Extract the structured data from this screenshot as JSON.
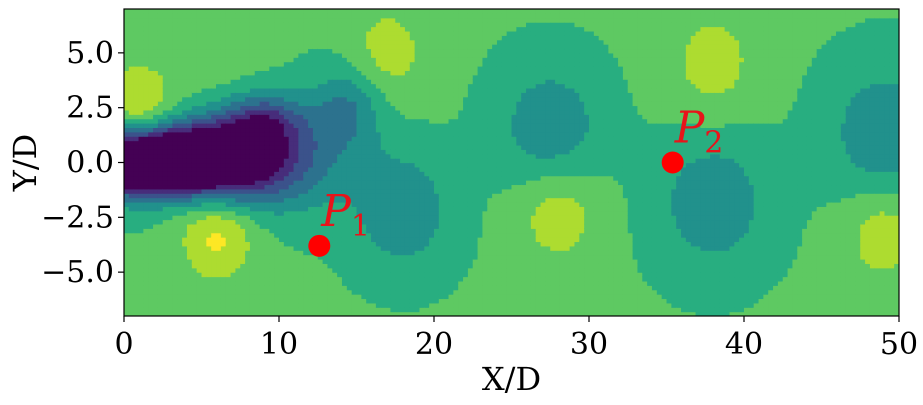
{
  "chart_data": {
    "type": "heatmap",
    "title": "",
    "xlabel": "X/D",
    "ylabel": "Y/D",
    "xlim": [
      0,
      50
    ],
    "ylim": [
      -7,
      7
    ],
    "xticks": [
      0,
      10,
      20,
      30,
      40,
      50
    ],
    "yticks": [
      -5.0,
      -2.5,
      0.0,
      2.5,
      5.0
    ],
    "xtick_labels": [
      "0",
      "10",
      "20",
      "30",
      "40",
      "50"
    ],
    "ytick_labels": [
      "−5.0",
      "−2.5",
      "0.0",
      "2.5",
      "5.0"
    ],
    "grid": false,
    "colormap": "viridis",
    "levels": 10,
    "points": [
      {
        "label": "P",
        "sub": "1",
        "x": 12.6,
        "y": -3.8,
        "color": "#ff0000"
      },
      {
        "label": "P",
        "sub": "2",
        "x": 35.4,
        "y": 0.0,
        "color": "#ff0000"
      }
    ]
  }
}
